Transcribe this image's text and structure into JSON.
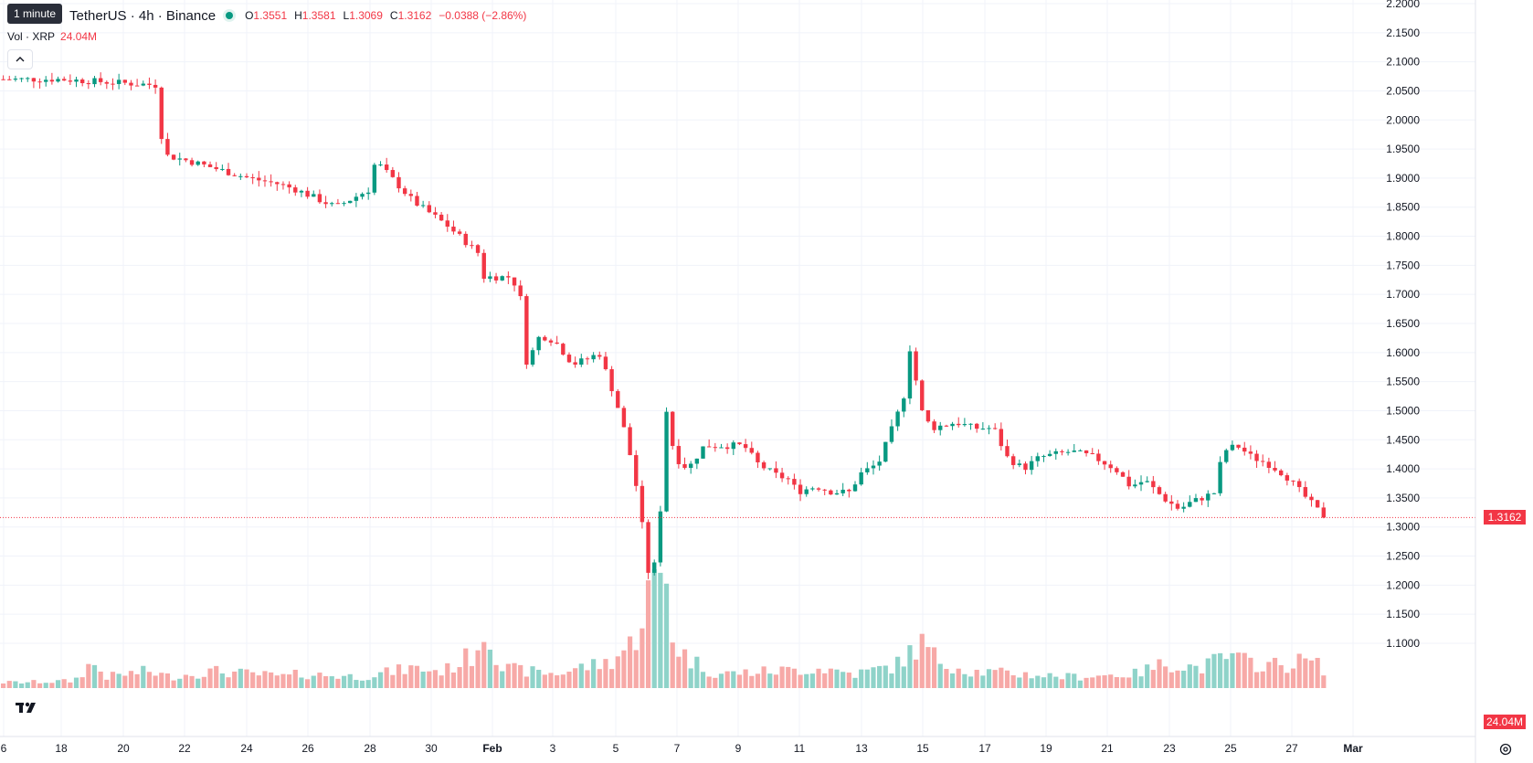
{
  "legend": {
    "tooltip": "1 minute",
    "symbol": "TetherUS · 4h · Binance",
    "open_label": "O",
    "open": "1.3551",
    "high_label": "H",
    "high": "1.3581",
    "low_label": "L",
    "low": "1.3069",
    "close_label": "C",
    "close": "1.3162",
    "change": "−0.0388 (−2.86%)",
    "volume_label": "Vol · XRP",
    "volume_value": "24.04M"
  },
  "price_axis": {
    "ticks": [
      "2.2000",
      "2.1500",
      "2.1000",
      "2.0500",
      "2.0000",
      "1.9500",
      "1.9000",
      "1.8500",
      "1.8000",
      "1.7500",
      "1.7000",
      "1.6500",
      "1.6000",
      "1.5500",
      "1.5000",
      "1.4500",
      "1.4000",
      "1.3500",
      "1.3000",
      "1.2500",
      "1.2000",
      "1.1500",
      "1.1000"
    ],
    "last_price": "1.3162",
    "volume_tag": "24.04M"
  },
  "time_axis": {
    "labels": [
      "6",
      "18",
      "20",
      "22",
      "24",
      "26",
      "28",
      "30",
      "Feb",
      "3",
      "5",
      "7",
      "9",
      "11",
      "13",
      "15",
      "17",
      "19",
      "21",
      "23",
      "25",
      "27",
      "Mar"
    ]
  },
  "colors": {
    "up": "#089981",
    "down": "#f23645",
    "up_volume": "#8fd3c9",
    "down_volume": "#f7a9a7"
  },
  "icons": {
    "logo": "tradingview-logo-icon",
    "collapse": "chevron-up-icon",
    "settings": "settings-gear-icon"
  },
  "chart_data": {
    "type": "candlestick",
    "price_range": [
      1.1,
      2.2
    ],
    "last": 1.3162,
    "anchors": [
      [
        1.2,
        2.07
      ],
      [
        4,
        2.07
      ],
      [
        9.9,
        2.06
      ],
      [
        10.3,
        1.94
      ],
      [
        11.8,
        1.93
      ],
      [
        15.5,
        1.9
      ],
      [
        17.3,
        1.89
      ],
      [
        18.4,
        1.88
      ],
      [
        20.8,
        1.85
      ],
      [
        22.8,
        1.88
      ],
      [
        23.2,
        1.93
      ],
      [
        25.5,
        1.86
      ],
      [
        27.5,
        1.82
      ],
      [
        29.5,
        1.77
      ],
      [
        29.8,
        1.73
      ],
      [
        31.5,
        1.73
      ],
      [
        32.2,
        1.68
      ],
      [
        32.4,
        1.58
      ],
      [
        33.2,
        1.63
      ],
      [
        34.1,
        1.62
      ],
      [
        35.2,
        1.58
      ],
      [
        36.2,
        1.59
      ],
      [
        36.8,
        1.6
      ],
      [
        37.8,
        1.52
      ],
      [
        38.5,
        1.45
      ],
      [
        39.2,
        1.35
      ],
      [
        39.9,
        1.2
      ],
      [
        40.2,
        1.24
      ],
      [
        40.6,
        1.35
      ],
      [
        40.9,
        1.5
      ],
      [
        41.4,
        1.42
      ],
      [
        42.2,
        1.4
      ],
      [
        43.2,
        1.44
      ],
      [
        45.6,
        1.44
      ],
      [
        46.4,
        1.41
      ],
      [
        47.5,
        1.39
      ],
      [
        48.5,
        1.38
      ],
      [
        48.8,
        1.36
      ],
      [
        50,
        1.37
      ],
      [
        51,
        1.36
      ],
      [
        52.1,
        1.36
      ],
      [
        52.6,
        1.39
      ],
      [
        53.8,
        1.41
      ],
      [
        54.9,
        1.49
      ],
      [
        55.5,
        1.54
      ],
      [
        55.8,
        1.64
      ],
      [
        56.2,
        1.51
      ],
      [
        57,
        1.47
      ],
      [
        58.5,
        1.48
      ],
      [
        59.6,
        1.47
      ],
      [
        60.8,
        1.47
      ],
      [
        61.6,
        1.42
      ],
      [
        62.6,
        1.4
      ],
      [
        63.6,
        1.42
      ],
      [
        65.5,
        1.43
      ],
      [
        66.9,
        1.42
      ],
      [
        68.2,
        1.4
      ],
      [
        69.1,
        1.37
      ],
      [
        70,
        1.38
      ],
      [
        71.1,
        1.35
      ],
      [
        72.1,
        1.33
      ],
      [
        72.6,
        1.34
      ],
      [
        74.3,
        1.36
      ],
      [
        74.7,
        1.43
      ],
      [
        75.6,
        1.44
      ],
      [
        76.5,
        1.42
      ],
      [
        77.4,
        1.41
      ],
      [
        78.5,
        1.39
      ],
      [
        79.8,
        1.35
      ],
      [
        80.8,
        1.32
      ]
    ],
    "volume_profile": [
      [
        1.2,
        0.2
      ],
      [
        4.5,
        0.25
      ],
      [
        5.6,
        0.9
      ],
      [
        6.5,
        0.4
      ],
      [
        9,
        0.6
      ],
      [
        10.3,
        0.4
      ],
      [
        13,
        0.6
      ],
      [
        17.5,
        0.4
      ],
      [
        18.1,
        0.5
      ],
      [
        22,
        0.4
      ],
      [
        25,
        0.7
      ],
      [
        27,
        0.6
      ],
      [
        28.8,
        1.2
      ],
      [
        29.6,
        2.3
      ],
      [
        30.5,
        0.7
      ],
      [
        32,
        0.6
      ],
      [
        34,
        0.5
      ],
      [
        35,
        0.7
      ],
      [
        37,
        0.9
      ],
      [
        38.5,
        1.6
      ],
      [
        39.5,
        3.5
      ],
      [
        40.5,
        4.0
      ],
      [
        41,
        1.5
      ],
      [
        42,
        1.0
      ],
      [
        43.5,
        0.5
      ],
      [
        47,
        0.6
      ],
      [
        50,
        0.7
      ],
      [
        52,
        0.5
      ],
      [
        54.5,
        0.8
      ],
      [
        56,
        1.6
      ],
      [
        57,
        1.0
      ],
      [
        59,
        0.6
      ],
      [
        62,
        0.5
      ],
      [
        65,
        0.4
      ],
      [
        69,
        0.5
      ],
      [
        71,
        0.9
      ],
      [
        73,
        0.7
      ],
      [
        74.5,
        1.1
      ],
      [
        76,
        0.9
      ],
      [
        78,
        0.8
      ],
      [
        79.5,
        1.0
      ],
      [
        80.8,
        0.6
      ]
    ],
    "volume_range": [
      0,
      4.0
    ],
    "x_days": [
      14.5,
      81
    ],
    "last_x": 80.8
  }
}
